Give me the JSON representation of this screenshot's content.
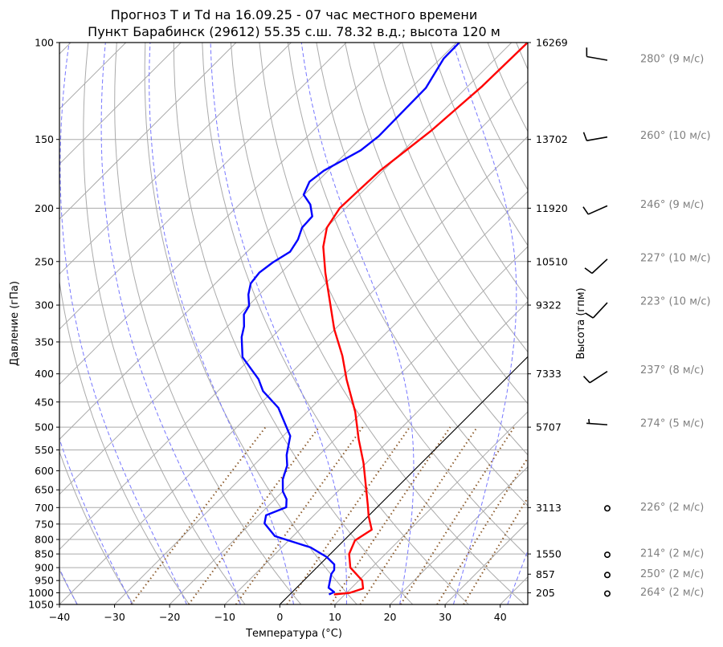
{
  "chart_data": {
    "type": "line",
    "subtype": "skew-t log-p",
    "title": [
      "Прогноз T и Td на 16.09.25 - 07 час местного времени",
      "Пункт Барабинск (29612) 55.35 с.ш. 78.32 в.д.; высота 120 м"
    ],
    "xlabel": "Температура (°C)",
    "ylabel": "Давление (гПа)",
    "ylabel_right": "Высота (гпм)",
    "xlim": [
      -40,
      45
    ],
    "ylim": [
      1050,
      100
    ],
    "xticks": [
      -40,
      -30,
      -20,
      -10,
      0,
      10,
      20,
      30,
      40
    ],
    "yticks": [
      100,
      150,
      200,
      250,
      300,
      350,
      400,
      450,
      500,
      550,
      600,
      650,
      700,
      750,
      800,
      850,
      900,
      950,
      1000,
      1050
    ],
    "height_ticks": [
      {
        "p": 100,
        "label": "16269"
      },
      {
        "p": 150,
        "label": "13702"
      },
      {
        "p": 200,
        "label": "11920"
      },
      {
        "p": 250,
        "label": "10510"
      },
      {
        "p": 300,
        "label": "9322"
      },
      {
        "p": 400,
        "label": "7333"
      },
      {
        "p": 500,
        "label": "5707"
      },
      {
        "p": 700,
        "label": "3113"
      },
      {
        "p": 850,
        "label": "1550"
      },
      {
        "p": 925,
        "label": "857"
      },
      {
        "p": 1000,
        "label": "205"
      }
    ],
    "series": [
      {
        "name": "T",
        "color": "#ff0000",
        "points": [
          [
            1007,
            8.0
          ],
          [
            1000,
            10.6
          ],
          [
            982,
            12.2
          ],
          [
            950,
            10.6
          ],
          [
            900,
            6.1
          ],
          [
            850,
            3.4
          ],
          [
            803,
            2.0
          ],
          [
            768,
            3.1
          ],
          [
            726,
            0.1
          ],
          [
            694,
            -2.0
          ],
          [
            581,
            -10.5
          ],
          [
            526,
            -15.7
          ],
          [
            469,
            -21.3
          ],
          [
            410,
            -28.7
          ],
          [
            371,
            -33.8
          ],
          [
            332,
            -40.1
          ],
          [
            321,
            -41.8
          ],
          [
            262,
            -52.0
          ],
          [
            235,
            -57.1
          ],
          [
            217,
            -59.9
          ],
          [
            200,
            -61.1
          ],
          [
            186,
            -60.9
          ],
          [
            171,
            -60.6
          ],
          [
            145,
            -58.6
          ],
          [
            120,
            -57.4
          ],
          [
            100,
            -57.1
          ]
        ]
      },
      {
        "name": "Td",
        "color": "#0000ff",
        "points": [
          [
            1007,
            7.1
          ],
          [
            997,
            7.6
          ],
          [
            979,
            5.8
          ],
          [
            924,
            3.8
          ],
          [
            909,
            3.6
          ],
          [
            888,
            2.6
          ],
          [
            861,
            -0.1
          ],
          [
            827,
            -4.8
          ],
          [
            789,
            -13.3
          ],
          [
            748,
            -17.5
          ],
          [
            723,
            -18.7
          ],
          [
            699,
            -16.5
          ],
          [
            676,
            -17.9
          ],
          [
            654,
            -20.0
          ],
          [
            622,
            -22.2
          ],
          [
            587,
            -23.9
          ],
          [
            562,
            -25.9
          ],
          [
            519,
            -28.7
          ],
          [
            461,
            -36.0
          ],
          [
            430,
            -41.8
          ],
          [
            409,
            -44.8
          ],
          [
            373,
            -51.7
          ],
          [
            343,
            -55.5
          ],
          [
            328,
            -57.0
          ],
          [
            312,
            -59.2
          ],
          [
            301,
            -59.8
          ],
          [
            287,
            -62.0
          ],
          [
            274,
            -63.6
          ],
          [
            262,
            -64.0
          ],
          [
            251,
            -63.4
          ],
          [
            240,
            -62.2
          ],
          [
            228,
            -63.0
          ],
          [
            217,
            -64.4
          ],
          [
            207,
            -64.6
          ],
          [
            197,
            -67.1
          ],
          [
            189,
            -70.1
          ],
          [
            179,
            -71.4
          ],
          [
            171,
            -70.8
          ],
          [
            157,
            -67.8
          ],
          [
            148,
            -67.1
          ],
          [
            121,
            -67.3
          ],
          [
            107,
            -69.4
          ],
          [
            100,
            -69.5
          ]
        ]
      }
    ],
    "highlight_isotherm_c": 0,
    "dry_adiabats_theta_c": [
      -40,
      -30,
      -20,
      -10,
      0,
      10,
      20,
      30,
      40,
      50,
      60,
      70,
      80,
      90,
      100,
      110,
      120,
      130,
      140,
      150,
      160,
      170,
      180,
      190,
      200
    ],
    "moist_adiabats_t1000_c": [
      -40,
      -30,
      -20,
      -10,
      0,
      10,
      20,
      30,
      40
    ],
    "mixing_ratios_kgkg": [
      0.0004,
      0.001,
      0.002,
      0.004,
      0.007,
      0.01,
      0.016,
      0.024,
      0.032
    ],
    "mixing_top_hpa": 500,
    "winds": [
      {
        "p": 100,
        "dir": 280,
        "speed": 9,
        "label": "280° (9 м/с)"
      },
      {
        "p": 150,
        "dir": 260,
        "speed": 10,
        "label": "260° (10 м/с)"
      },
      {
        "p": 200,
        "dir": 246,
        "speed": 9,
        "label": "246° (9 м/с)"
      },
      {
        "p": 250,
        "dir": 227,
        "speed": 10,
        "label": "227° (10 м/с)"
      },
      {
        "p": 300,
        "dir": 223,
        "speed": 10,
        "label": "223° (10 м/с)"
      },
      {
        "p": 400,
        "dir": 237,
        "speed": 8,
        "label": "237° (8 м/с)"
      },
      {
        "p": 500,
        "dir": 274,
        "speed": 5,
        "label": "274° (5 м/с)"
      },
      {
        "p": 700,
        "dir": 226,
        "speed": 2,
        "label": "226° (2 м/с)"
      },
      {
        "p": 850,
        "dir": 214,
        "speed": 2,
        "label": "214° (2 м/с)"
      },
      {
        "p": 925,
        "dir": 250,
        "speed": 2,
        "label": "250° (2 м/с)"
      },
      {
        "p": 1000,
        "dir": 264,
        "speed": 2,
        "label": "264° (2 м/с)"
      }
    ],
    "colors": {
      "grid": "#aaaaaa",
      "moist": "#7777ff",
      "mixing": "#8b5a2b",
      "wind_label": "#808080"
    }
  }
}
